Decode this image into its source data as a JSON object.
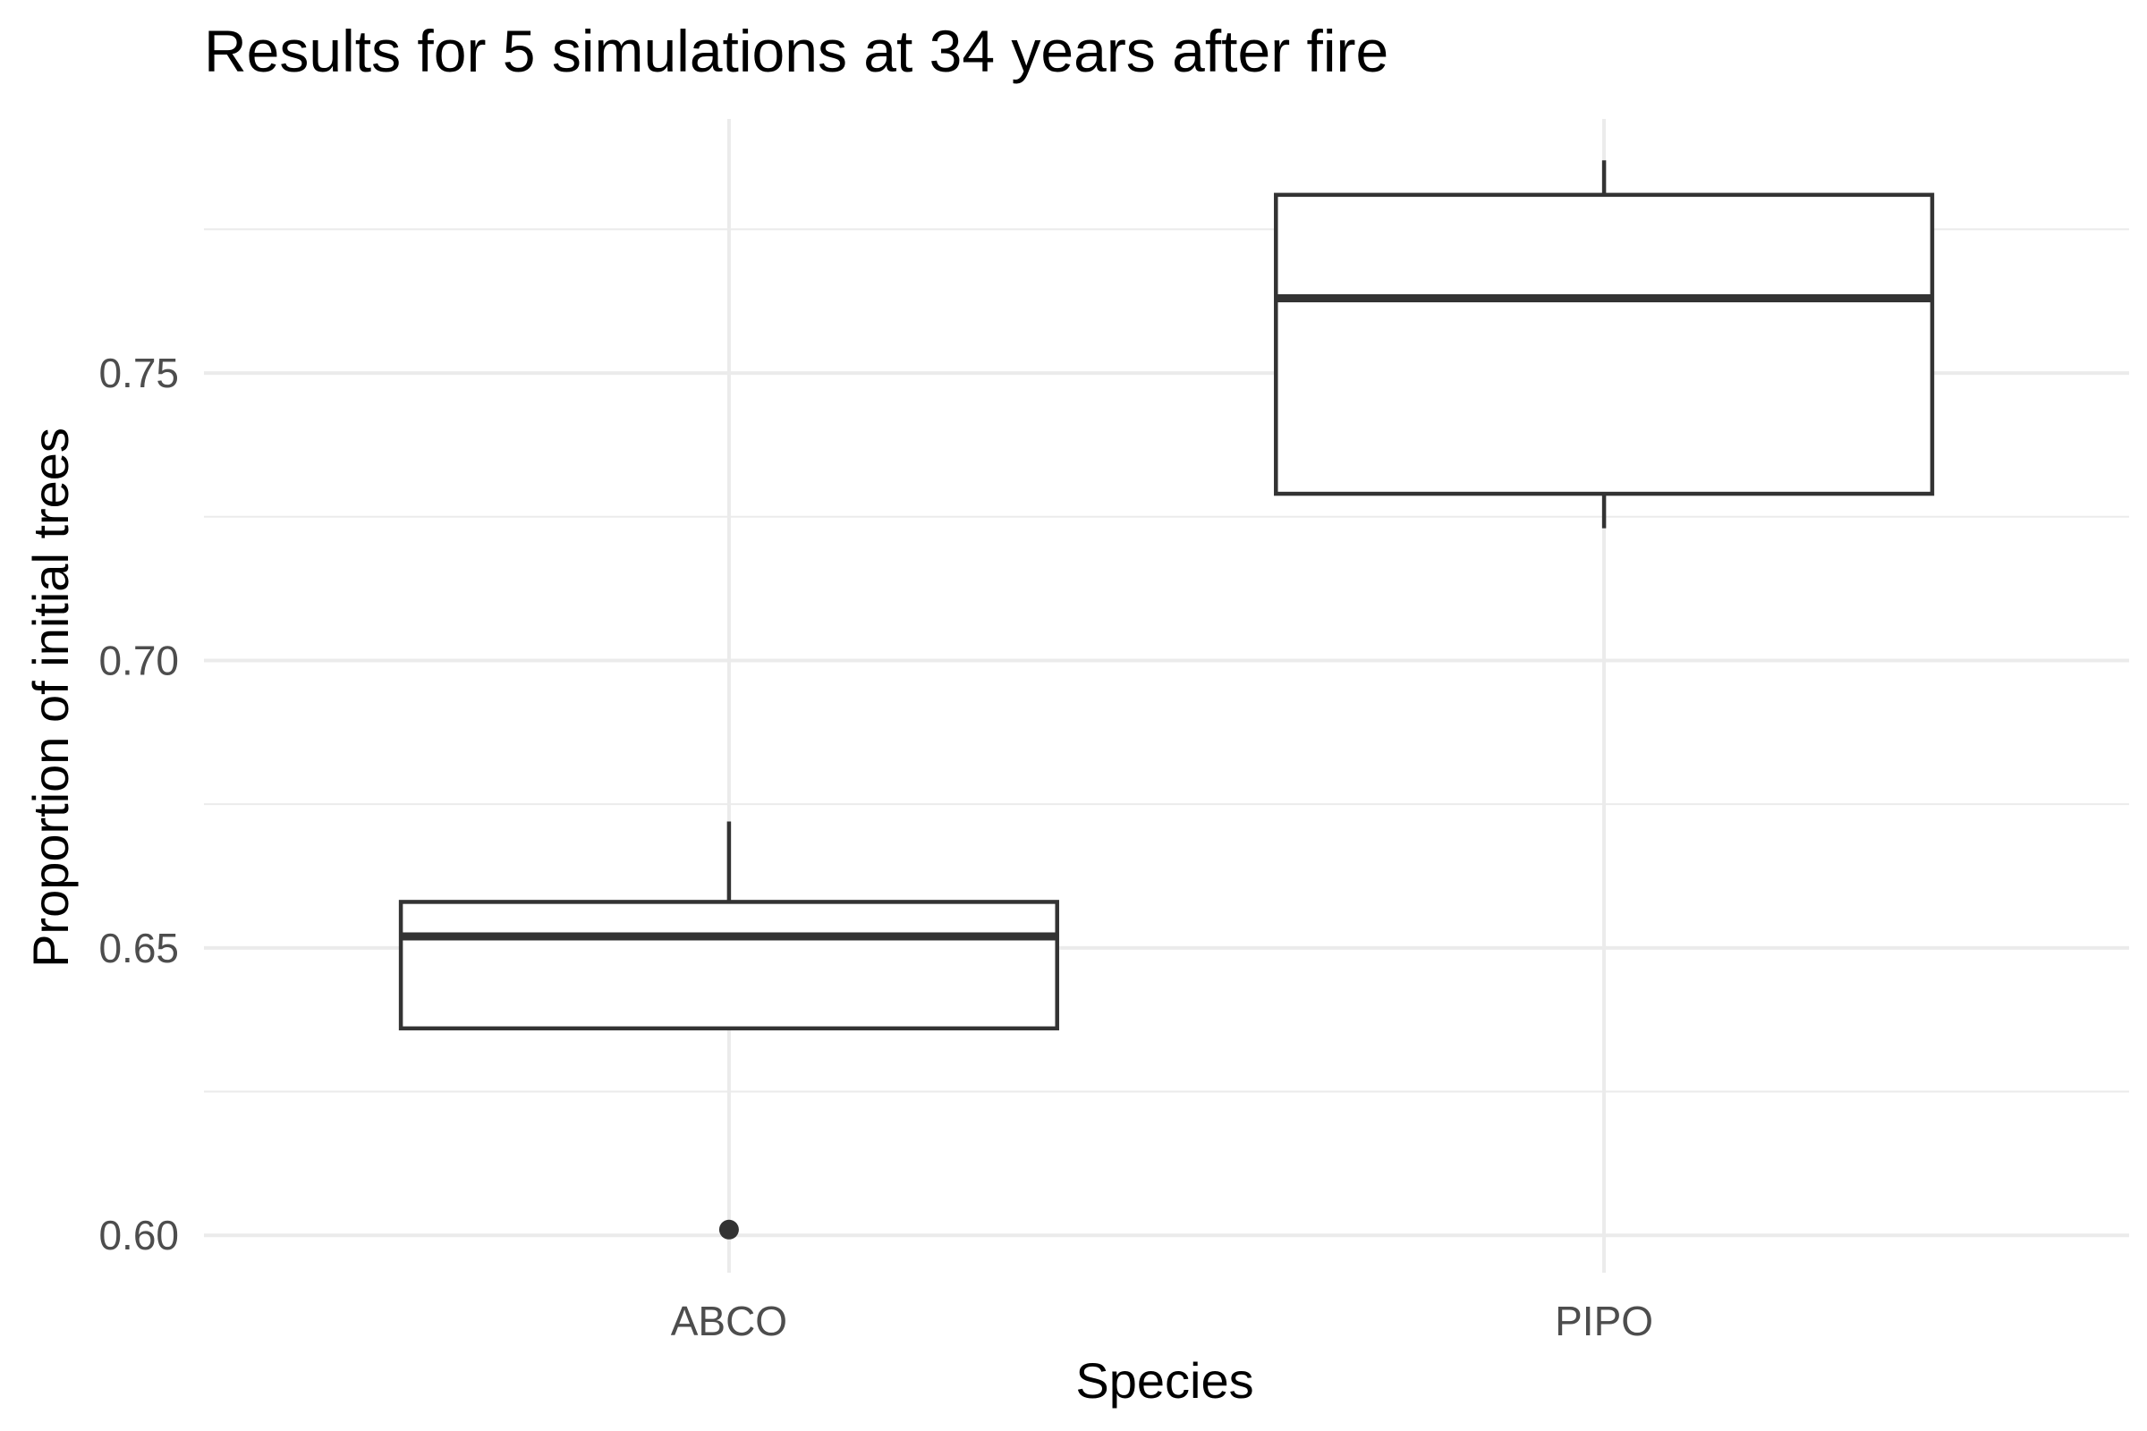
{
  "chart_data": {
    "type": "boxplot",
    "title": "Results for 5 simulations at 34 years after fire",
    "xlabel": "Species",
    "ylabel": "Proportion of initial trees",
    "categories": [
      "ABCO",
      "PIPO"
    ],
    "boxes": [
      {
        "category": "ABCO",
        "whisker_low": 0.636,
        "q1": 0.636,
        "median": 0.652,
        "q3": 0.658,
        "whisker_high": 0.672,
        "outliers": [
          0.601
        ]
      },
      {
        "category": "PIPO",
        "whisker_low": 0.723,
        "q1": 0.729,
        "median": 0.763,
        "q3": 0.781,
        "whisker_high": 0.787,
        "outliers": []
      }
    ],
    "ylim": [
      0.5935,
      0.7942
    ],
    "y_major_ticks": [
      0.6,
      0.65,
      0.7,
      0.75
    ],
    "y_tick_labels": [
      "0.60",
      "0.65",
      "0.70",
      "0.75"
    ],
    "y_minor_ticks": [
      0.625,
      0.675,
      0.725,
      0.775
    ],
    "grid": true,
    "legend": "none",
    "colors": {
      "box_line": "#333333",
      "box_fill": "#ffffff",
      "grid": "#ebebeb",
      "tick_text": "#4d4d4d",
      "text": "#000000"
    }
  }
}
